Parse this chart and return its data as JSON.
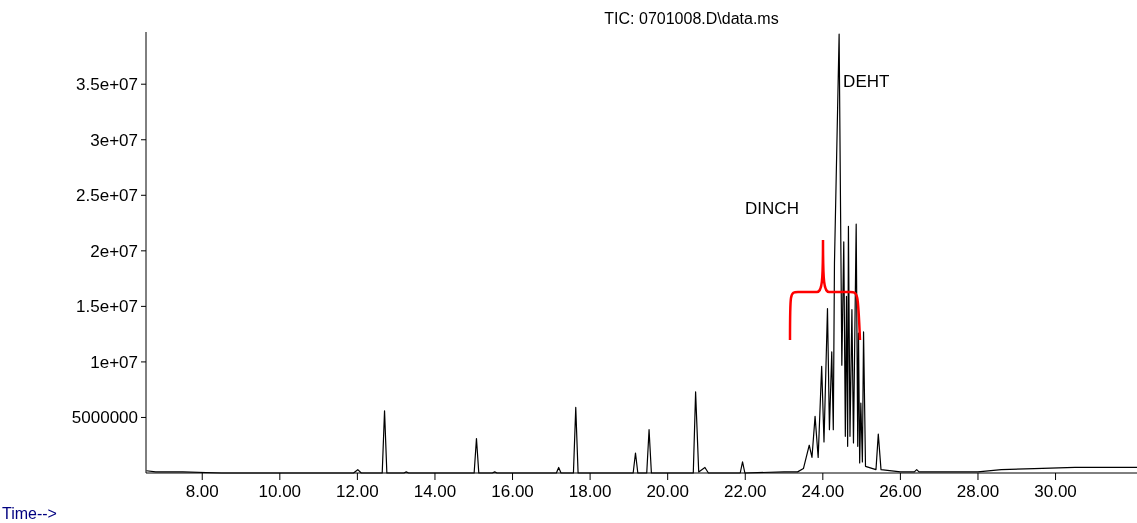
{
  "chart_data": {
    "type": "line",
    "title": "TIC: 0701008.D\\data.ms",
    "xlabel": "Time-->",
    "annotations": [
      "DINCH",
      {
        "text": "DEHT",
        "x": 24.42,
        "y": 39500000
      }
    ],
    "x": [
      6.56,
      6.8,
      7.5,
      8.5,
      9.5,
      11.9,
      12.01,
      12.1,
      12.64,
      12.7,
      12.76,
      13.2,
      13.26,
      13.32,
      15.01,
      15.07,
      15.13,
      15.48,
      15.54,
      15.6,
      17.13,
      17.19,
      17.25,
      17.57,
      17.63,
      17.69,
      19.11,
      19.17,
      19.23,
      19.46,
      19.52,
      19.58,
      20.66,
      20.72,
      20.8,
      20.96,
      21.05,
      21.87,
      21.93,
      21.99,
      23.0,
      23.35,
      23.5,
      23.65,
      23.72,
      23.8,
      23.88,
      23.97,
      24.03,
      24.12,
      24.17,
      24.23,
      24.27,
      24.3,
      24.42,
      24.49,
      24.54,
      24.58,
      24.61,
      24.64,
      24.66,
      24.7,
      24.75,
      24.79,
      24.86,
      24.9,
      24.92,
      24.95,
      24.98,
      25.02,
      25.05,
      25.1,
      25.37,
      25.43,
      25.5,
      26.0,
      26.36,
      26.42,
      26.48,
      27.2,
      28.0,
      28.6,
      29.45,
      30.5,
      31.4,
      32.1
    ],
    "series": [
      {
        "color": "#000000",
        "values": [
          200000,
          100000,
          100000,
          0,
          0,
          0,
          300000,
          0,
          0,
          5600000,
          0,
          0,
          100000,
          0,
          0,
          3100000,
          0,
          0,
          100000,
          0,
          0,
          500000,
          0,
          0,
          5900000,
          0,
          0,
          1800000,
          0,
          0,
          3900000,
          0,
          0,
          7300000,
          100000,
          500000,
          0,
          0,
          1000000,
          0,
          100000,
          100000,
          400000,
          2500000,
          1400000,
          5100000,
          1400000,
          9600000,
          2800000,
          14800000,
          3900000,
          10900000,
          3900000,
          18900000,
          39500000,
          9700000,
          20800000,
          3300000,
          15900000,
          2400000,
          22200000,
          3300000,
          14700000,
          2700000,
          22400000,
          2400000,
          12600000,
          900000,
          6300000,
          1000000,
          12700000,
          600000,
          300000,
          3500000,
          300000,
          100000,
          100000,
          300000,
          100000,
          100000,
          100000,
          300000,
          400000,
          500000,
          500000,
          500000
        ]
      }
    ],
    "xlim": [
      6.55,
      32.1
    ],
    "ylim": [
      0,
      39700000
    ],
    "xticks": [
      {
        "value": 8,
        "label": "8.00"
      },
      {
        "value": 10,
        "label": "10.00"
      },
      {
        "value": 12,
        "label": "12.00"
      },
      {
        "value": 14,
        "label": "14.00"
      },
      {
        "value": 16,
        "label": "16.00"
      },
      {
        "value": 18,
        "label": "18.00"
      },
      {
        "value": 20,
        "label": "20.00"
      },
      {
        "value": 22,
        "label": "22.00"
      },
      {
        "value": 24,
        "label": "24.00"
      },
      {
        "value": 26,
        "label": "26.00"
      },
      {
        "value": 28,
        "label": "28.00"
      },
      {
        "value": 30,
        "label": "30.00"
      }
    ],
    "yticks": [
      5000000,
      {
        "value": 10000000,
        "label": "1e+07"
      },
      {
        "value": 15000000,
        "label": "1.5e+07"
      },
      {
        "value": 20000000,
        "label": "2e+07"
      },
      {
        "value": 25000000,
        "label": "2.5e+07"
      },
      {
        "value": 30000000,
        "label": "3e+07"
      },
      {
        "value": 35000000,
        "label": "3.5e+07"
      }
    ],
    "grid": false,
    "marker": "none",
    "line_style": "solid"
  }
}
